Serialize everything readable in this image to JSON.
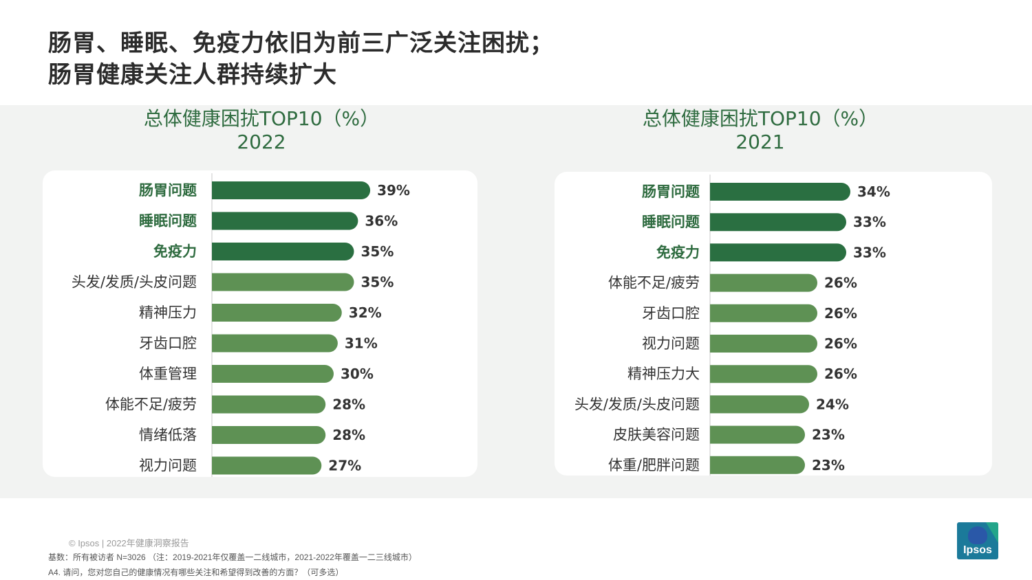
{
  "headline": {
    "line1": "肠胃、睡眠、免疫力依旧为前三广泛关注困扰；",
    "line2": "肠胃健康关注人群持续扩大"
  },
  "colors": {
    "dark_green": "#2a6f41",
    "light_green": "#5e9154",
    "highlight_label": "#2e6b3f",
    "band": "#f2f3f2"
  },
  "chart_data": [
    {
      "type": "bar",
      "orientation": "horizontal",
      "title": "总体健康困扰TOP10（%）",
      "subtitle": "2022",
      "categories": [
        "肠胃问题",
        "睡眠问题",
        "免疫力",
        "头发/发质/头皮问题",
        "精神压力",
        "牙齿口腔",
        "体重管理",
        "体能不足/疲劳",
        "情绪低落",
        "视力问题"
      ],
      "values": [
        39,
        36,
        35,
        35,
        32,
        31,
        30,
        28,
        28,
        27
      ],
      "value_labels": [
        "39%",
        "36%",
        "35%",
        "35%",
        "32%",
        "31%",
        "30%",
        "28%",
        "28%",
        "27%"
      ],
      "highlighted": [
        true,
        true,
        true,
        false,
        false,
        false,
        false,
        false,
        false,
        false
      ]
    },
    {
      "type": "bar",
      "orientation": "horizontal",
      "title": "总体健康困扰TOP10（%）",
      "subtitle": "2021",
      "categories": [
        "肠胃问题",
        "睡眠问题",
        "免疫力",
        "体能不足/疲劳",
        "牙齿口腔",
        "视力问题",
        "精神压力大",
        "头发/发质/头皮问题",
        "皮肤美容问题",
        "体重/肥胖问题"
      ],
      "values": [
        34,
        33,
        33,
        26,
        26,
        26,
        26,
        24,
        23,
        23
      ],
      "value_labels": [
        "34%",
        "33%",
        "33%",
        "26%",
        "26%",
        "26%",
        "26%",
        "24%",
        "23%",
        "23%"
      ],
      "highlighted": [
        true,
        true,
        true,
        false,
        false,
        false,
        false,
        false,
        false,
        false
      ]
    }
  ],
  "footer": {
    "copyright": "© Ipsos | 2022年健康洞察报告",
    "base": "基数：所有被访者  N=3026  （注：2019-2021年仅覆盖一二线城市，2021-2022年覆盖一二三线城市）",
    "question": "A4. 请问，您对您自己的健康情况有哪些关注和希望得到改善的方面？（可多选）"
  },
  "logo": {
    "text": "Ipsos"
  }
}
